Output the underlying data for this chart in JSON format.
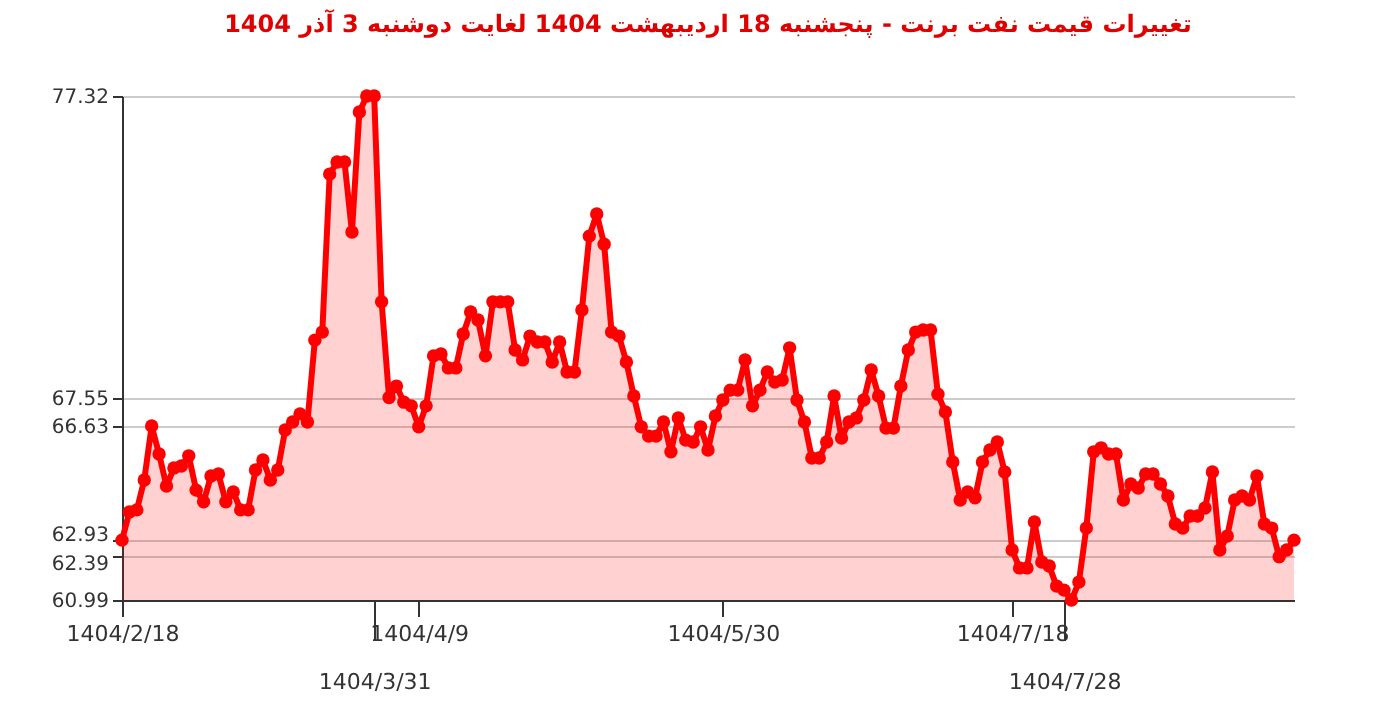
{
  "chart_data": {
    "type": "area",
    "title": "تغییرات قیمت نفت برنت - پنجشنبه  18 اردیبهشت 1404 لغایت  دوشنبه  3 آذر 1404",
    "categories": [
      "1404/2/18",
      null,
      null,
      null,
      null,
      null,
      null,
      null,
      null,
      null,
      null,
      null,
      null,
      null,
      null,
      null,
      null,
      null,
      null,
      null,
      null,
      null,
      null,
      null,
      null,
      null,
      null,
      null,
      null,
      null,
      null,
      null,
      null,
      null,
      "1404/3/31",
      null,
      null,
      null,
      null,
      null,
      "1404/4/9",
      null,
      null,
      null,
      null,
      null,
      null,
      null,
      null,
      null,
      null,
      null,
      null,
      null,
      null,
      null,
      null,
      null,
      null,
      null,
      null,
      null,
      null,
      null,
      null,
      null,
      null,
      null,
      null,
      null,
      null,
      null,
      null,
      null,
      null,
      null,
      null,
      null,
      null,
      null,
      null,
      "1404/5/30",
      null,
      null,
      null,
      null,
      null,
      null,
      null,
      null,
      null,
      null,
      null,
      null,
      null,
      null,
      null,
      null,
      null,
      null,
      null,
      null,
      null,
      null,
      null,
      null,
      null,
      null,
      null,
      null,
      null,
      null,
      null,
      null,
      null,
      null,
      null,
      null,
      null,
      null,
      "1404/7/18",
      null,
      null,
      null,
      null,
      null,
      null,
      "1404/7/28",
      null,
      null,
      null,
      null,
      null,
      null,
      null,
      null,
      null,
      null,
      null,
      null,
      null,
      null,
      null,
      null,
      null,
      null,
      null,
      null,
      null,
      null,
      null,
      null,
      null,
      null,
      null,
      null,
      null,
      null,
      null
    ],
    "series": [
      {
        "color": "#ff0000",
        "values": [
          62.93,
          63.84,
          63.91,
          64.88,
          66.63,
          65.72,
          64.68,
          65.27,
          65.33,
          65.66,
          64.55,
          64.17,
          65.01,
          65.07,
          64.17,
          64.49,
          63.91,
          63.91,
          65.2,
          65.53,
          64.88,
          65.2,
          66.5,
          66.76,
          67.02,
          66.76,
          69.41,
          69.67,
          74.79,
          75.18,
          75.18,
          72.91,
          76.8,
          77.32,
          77.32,
          70.65,
          67.55,
          67.92,
          67.4,
          67.28,
          66.6,
          67.28,
          68.9,
          68.96,
          68.51,
          68.51,
          69.61,
          70.32,
          70.06,
          68.9,
          70.65,
          70.65,
          70.65,
          69.09,
          68.77,
          69.54,
          69.35,
          69.35,
          68.7,
          69.35,
          68.38,
          68.38,
          70.39,
          72.78,
          73.5,
          72.52,
          69.67,
          69.54,
          68.7,
          67.6,
          66.6,
          66.3,
          66.3,
          66.76,
          65.79,
          66.89,
          66.17,
          66.11,
          66.6,
          65.85,
          66.95,
          67.47,
          67.79,
          67.79,
          68.77,
          67.28,
          67.79,
          68.38,
          68.05,
          68.12,
          69.16,
          67.47,
          66.76,
          65.59,
          65.59,
          66.11,
          67.6,
          66.24,
          66.76,
          66.89,
          67.47,
          68.44,
          67.6,
          66.56,
          66.56,
          67.92,
          69.09,
          69.67,
          69.74,
          69.74,
          67.66,
          67.08,
          65.46,
          64.23,
          64.49,
          64.3,
          65.46,
          65.85,
          66.11,
          65.14,
          62.61,
          62.03,
          62.03,
          63.52,
          62.22,
          62.09,
          61.44,
          61.31,
          60.99,
          61.57,
          63.32,
          65.79,
          65.92,
          65.72,
          65.72,
          64.23,
          64.75,
          64.62,
          65.07,
          65.07,
          64.75,
          64.36,
          63.45,
          63.32,
          63.71,
          63.71,
          63.97,
          65.14,
          62.61,
          63.06,
          64.23,
          64.36,
          64.23,
          65.01,
          63.45,
          63.32,
          62.39,
          62.61,
          62.93
        ]
      }
    ],
    "ylim": [
      60.99,
      77.32
    ],
    "yticks": [
      60.99,
      62.39,
      62.93,
      66.63,
      67.55,
      77.32
    ],
    "grid": "y",
    "marker": "circle",
    "line_style": "solid"
  }
}
